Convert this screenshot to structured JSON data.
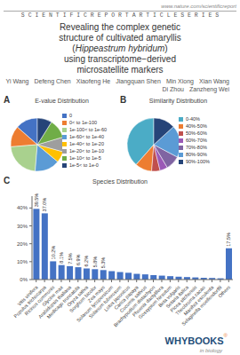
{
  "title": "Revealing the complex genetic\nstructure of cultivated amaryllis\n(Hippeastrum hybridum)\nusing transcriptome−derived\nmicrosatellite markers",
  "annotations": [
    [
      "www.nature.com/scientificreport",
      "S C I E N T I F I C R E P O R T A R T I C L E S E R I E S"
    ],
    [
      "Yi Wang",
      "Defeng Chen",
      "Xiaofeng He",
      "Jiangquan Shen",
      "Min Xiong",
      "Xian Wang",
      "Di Zhou",
      "Zanzheng Wei"
    ],
    [
      "WHYBOOKS",
      "®",
      "in biology"
    ]
  ],
  "chart_data": [
    {
      "type": "pie",
      "title": "E-value Distribution",
      "annotations": [
        "A"
      ],
      "categories": [
        "0",
        "0< to 1e-100",
        "1e-100< to 1e-60",
        "1e-60< to 1e-40",
        "1e-40< to 1e-20",
        "1e-20< to 1e-10",
        "1e-10< to 1e-5",
        "1e-5< to 1e-0"
      ],
      "values": [
        13.5,
        12.8,
        22.4,
        15.2,
        6.8,
        8.9,
        11.5,
        8.9
      ],
      "colors": [
        "#4472C4",
        "#ED7D31",
        "#A9D18E",
        "#5B9BD5",
        "#FFC000",
        "#9E9E9E",
        "#70AD47",
        "#264478"
      ],
      "legend": "right"
    },
    {
      "type": "pie",
      "title": "Similarity Distribution",
      "annotations": [
        "B"
      ],
      "categories": [
        "0-40%",
        "40%-50%",
        "50%-60%",
        "60%-70%",
        "70%-80%",
        "80%-90%",
        "90%-100%"
      ],
      "values": [
        38.5,
        10.2,
        5.1,
        4.7,
        8.8,
        19.5,
        13.2
      ],
      "colors": [
        "#4BACC6",
        "#ED7D31",
        "#C0504D",
        "#9B59B6",
        "#8064A2",
        "#5B9BD5",
        "#264478"
      ],
      "legend": "right"
    },
    {
      "type": "bar",
      "title": "Species Distribution",
      "annotations": [
        "C"
      ],
      "categories": [
        "Vitis vinifera",
        "Populus trichocarpa",
        "Ricinus communis",
        "Glycine max",
        "Arabidopsis thaliana",
        "Medicago truncatula",
        "Oryza sativa",
        "Sorghum bicolor",
        "Zea mays",
        "Solanum lycopersicum",
        "Solanum tuberosum",
        "Lotus japonicus",
        "Carica papaya",
        "Cucumis sativus",
        "Brachypodium distachyon",
        "Phoenix dactylifera",
        "Gossypium hirsutum",
        "Beta vulgaris",
        "Setaria italica",
        "Picea sitchensis",
        "Theobroma cacao",
        "Manihot esculenta",
        "Selaginella moellendorffii",
        "Others"
      ],
      "values": [
        39.5,
        37.0,
        10.2,
        8.1,
        7.5,
        6.9,
        6.2,
        5.8,
        5.3,
        4.7,
        4.2,
        3.8,
        3.2,
        2.9,
        2.5,
        2.2,
        1.9,
        1.6,
        1.4,
        1.2,
        1.0,
        0.9,
        0.7,
        17.5
      ],
      "color": "#4472C4",
      "ylim": [
        0,
        46.61
      ],
      "yticks": [
        {
          "value": 0,
          "label": "0%"
        },
        {
          "value": 10,
          "label": "10%"
        },
        {
          "value": 20,
          "label": "20%"
        },
        {
          "value": 30,
          "label": "30%"
        },
        {
          "value": 40,
          "label": "40%"
        }
      ],
      "grid": false,
      "data_labels": true,
      "value_labels": [
        "39.5%",
        "37.0%",
        "10.2%",
        "8.1%",
        "7.5%",
        "6.9%",
        "6.2%",
        "5.8%",
        "5.3%",
        null,
        null,
        null,
        null,
        null,
        null,
        null,
        null,
        null,
        null,
        null,
        null,
        null,
        null,
        "17.5%"
      ]
    }
  ]
}
